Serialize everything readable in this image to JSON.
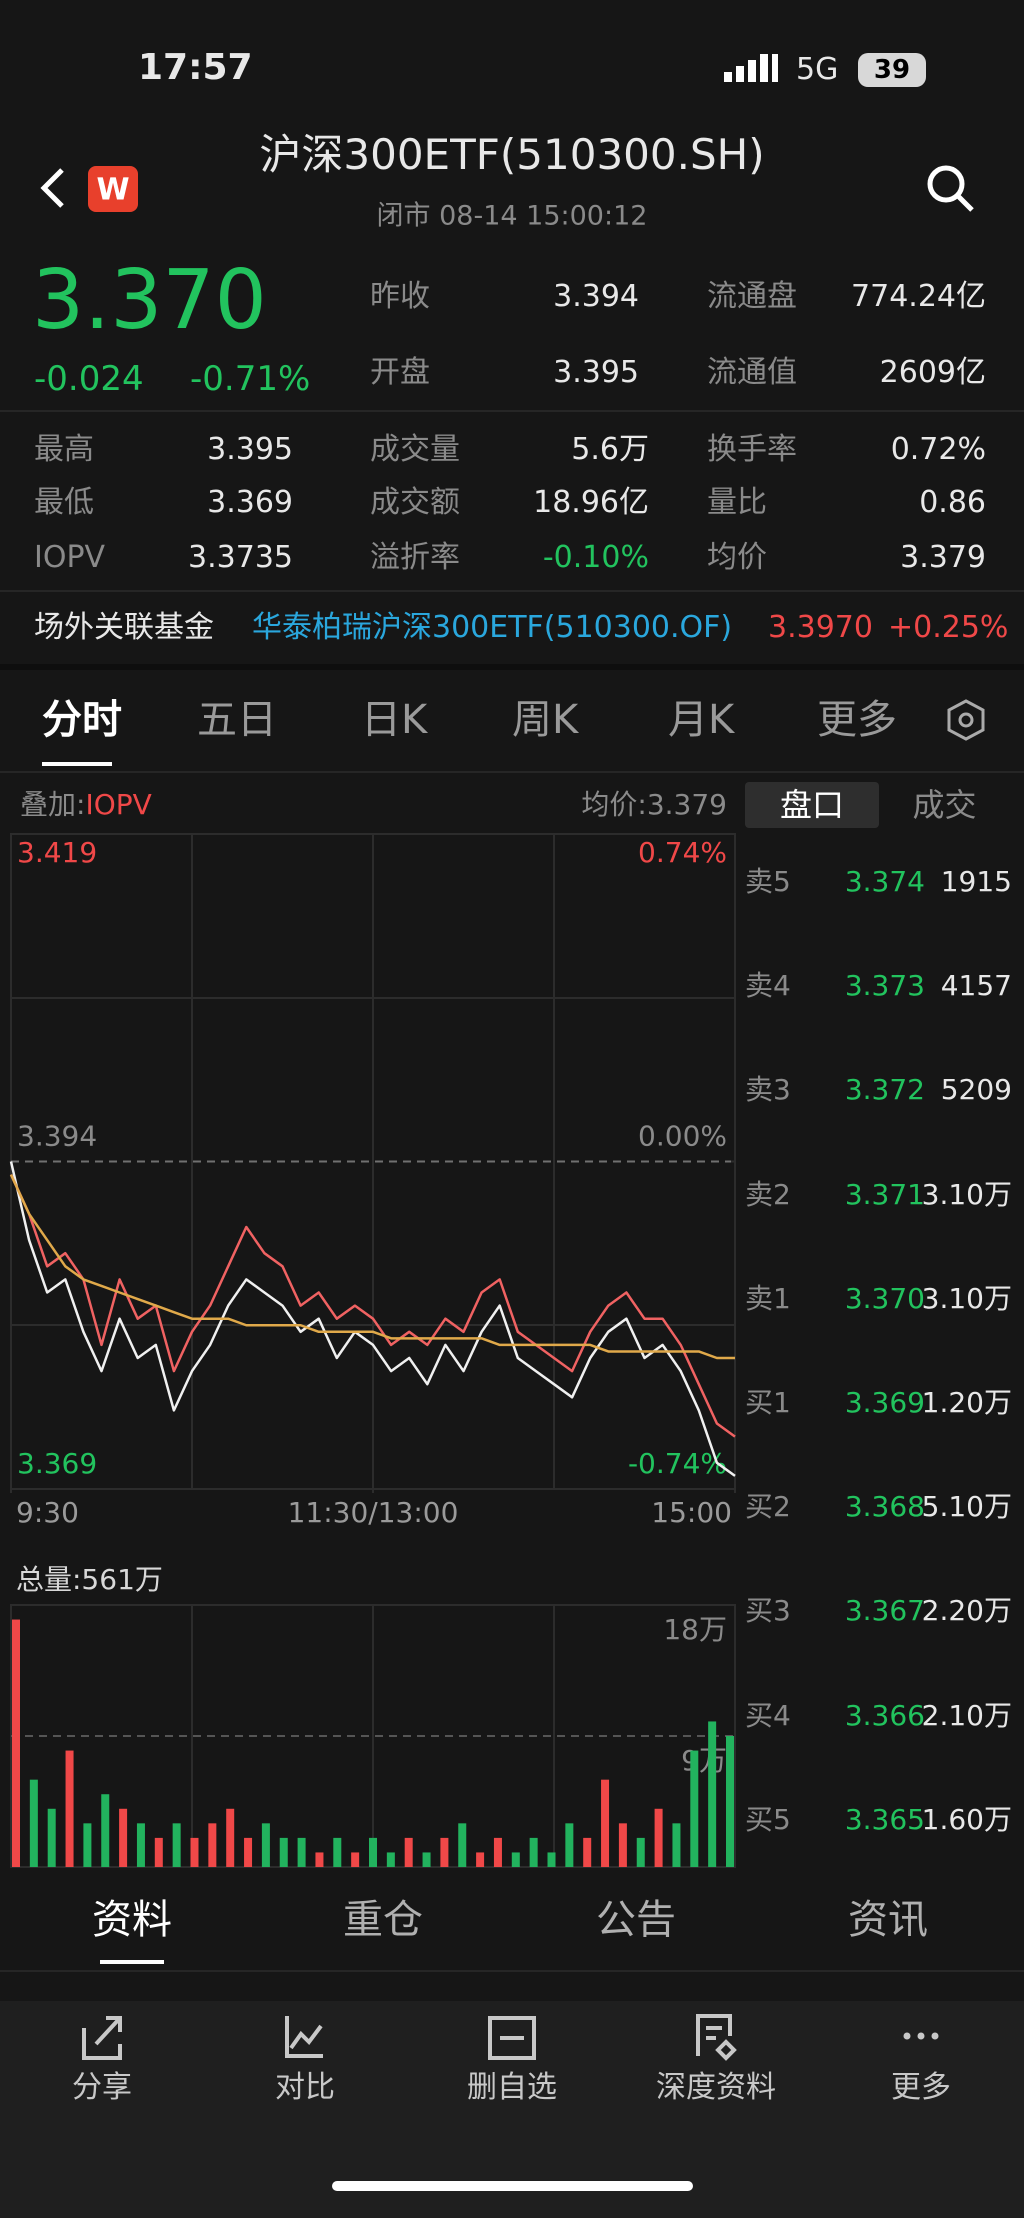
{
  "status": {
    "time": "17:57",
    "network": "5G",
    "battery": "39"
  },
  "header": {
    "title": "沪深300ETF(510300.SH)",
    "subtitle": "闭市 08-14 15:00:12"
  },
  "quote": {
    "price": "3.370",
    "change": "-0.024",
    "change_pct": "-0.71%",
    "top_stats": [
      [
        "昨收",
        "3.394",
        "流通盘",
        "774.24亿"
      ],
      [
        "开盘",
        "3.395",
        "流通值",
        "2609亿"
      ]
    ],
    "stats": [
      [
        "最高",
        "3.395",
        "成交量",
        "5.6万",
        "换手率",
        "0.72%"
      ],
      [
        "最低",
        "3.369",
        "成交额",
        "18.96亿",
        "量比",
        "0.86"
      ],
      [
        "IOPV",
        "3.3735",
        "溢折率",
        "-0.10%",
        "均价",
        "3.379"
      ]
    ]
  },
  "related": {
    "label": "场外关联基金",
    "fund": "华泰柏瑞沪深300ETF(510300.OF)",
    "price": "3.3970",
    "change": "+0.25%"
  },
  "tabs": [
    "分时",
    "五日",
    "日K",
    "周K",
    "月K",
    "更多"
  ],
  "chart_header": {
    "overlay_label": "叠加:",
    "overlay": "IOPV",
    "avg": "均价:3.379"
  },
  "book_tabs": [
    "盘口",
    "成交"
  ],
  "order_book": [
    [
      "卖5",
      "3.374",
      "1915"
    ],
    [
      "卖4",
      "3.373",
      "4157"
    ],
    [
      "卖3",
      "3.372",
      "5209"
    ],
    [
      "卖2",
      "3.371",
      "3.10万"
    ],
    [
      "卖1",
      "3.370",
      "3.10万"
    ],
    [
      "买1",
      "3.369",
      "1.20万"
    ],
    [
      "买2",
      "3.368",
      "5.10万"
    ],
    [
      "买3",
      "3.367",
      "2.20万"
    ],
    [
      "买4",
      "3.366",
      "2.10万"
    ],
    [
      "买5",
      "3.365",
      "1.60万"
    ]
  ],
  "chart_data": [
    {
      "type": "line",
      "x": [
        0,
        6,
        12,
        18,
        24,
        30,
        36,
        42,
        48,
        54,
        60,
        66,
        72,
        78,
        84,
        90,
        96,
        102,
        108,
        114,
        120,
        126,
        132,
        138,
        144,
        150,
        156,
        162,
        168,
        174,
        180,
        186,
        192,
        198,
        204,
        210,
        216,
        222,
        228,
        234,
        240
      ],
      "xlim": [
        0,
        240
      ],
      "xticks": [
        {
          "value": 0,
          "label": "9:30"
        },
        {
          "value": 120,
          "label": "11:30/13:00"
        },
        {
          "value": 240,
          "label": "15:00"
        }
      ],
      "ylim": [
        3.369,
        3.419
      ],
      "yticks": [
        3.419,
        3.394,
        3.369
      ],
      "y2lim": [
        -0.74,
        0.74
      ],
      "y2ticks": [
        {
          "value": 0.74,
          "label": "0.74%"
        },
        {
          "value": 0,
          "label": "0.00%"
        },
        {
          "value": -0.74,
          "label": "-0.74%"
        }
      ],
      "series": [
        {
          "color": "#f0f0f0",
          "values": [
            3.394,
            3.388,
            3.384,
            3.385,
            3.381,
            3.378,
            3.382,
            3.379,
            3.38,
            3.375,
            3.378,
            3.38,
            3.383,
            3.385,
            3.384,
            3.383,
            3.381,
            3.382,
            3.379,
            3.381,
            3.38,
            3.378,
            3.379,
            3.377,
            3.38,
            3.378,
            3.381,
            3.383,
            3.379,
            3.378,
            3.377,
            3.376,
            3.379,
            3.381,
            3.382,
            3.379,
            3.38,
            3.378,
            3.375,
            3.371,
            3.37
          ]
        },
        {
          "color": "#f06262",
          "values": [
            3.393,
            3.39,
            3.386,
            3.387,
            3.385,
            3.38,
            3.385,
            3.382,
            3.383,
            3.378,
            3.381,
            3.383,
            3.386,
            3.389,
            3.387,
            3.386,
            3.383,
            3.384,
            3.382,
            3.383,
            3.382,
            3.38,
            3.381,
            3.38,
            3.382,
            3.381,
            3.384,
            3.385,
            3.381,
            3.38,
            3.379,
            3.378,
            3.381,
            3.383,
            3.384,
            3.382,
            3.382,
            3.38,
            3.377,
            3.374,
            3.373
          ]
        },
        {
          "color": "#e0a94a",
          "values": [
            3.393,
            3.39,
            3.388,
            3.386,
            3.385,
            3.3845,
            3.384,
            3.3835,
            3.383,
            3.3825,
            3.382,
            3.382,
            3.382,
            3.3815,
            3.3815,
            3.3815,
            3.3815,
            3.381,
            3.381,
            3.381,
            3.381,
            3.3805,
            3.3805,
            3.3805,
            3.3805,
            3.3805,
            3.3805,
            3.38,
            3.38,
            3.38,
            3.38,
            3.38,
            3.38,
            3.3795,
            3.3795,
            3.3795,
            3.3795,
            3.3795,
            3.3795,
            3.379,
            3.379
          ]
        }
      ]
    },
    {
      "type": "bar",
      "title": "总量:561万",
      "x": [
        0,
        6,
        12,
        18,
        24,
        30,
        36,
        42,
        48,
        54,
        60,
        66,
        72,
        78,
        84,
        90,
        96,
        102,
        108,
        114,
        120,
        126,
        132,
        138,
        144,
        150,
        156,
        162,
        168,
        174,
        180,
        186,
        192,
        198,
        204,
        210,
        216,
        222,
        228,
        234,
        240
      ],
      "xlim": [
        0,
        240
      ],
      "ylim": [
        0,
        18
      ],
      "yticks": [
        {
          "value": 18,
          "label": "18万"
        },
        {
          "value": 9,
          "label": "9万"
        }
      ],
      "values": [
        17,
        6,
        4,
        8,
        3,
        5,
        4,
        3,
        2,
        3,
        2,
        3,
        4,
        2,
        3,
        2,
        2,
        1,
        2,
        1,
        2,
        1,
        2,
        1,
        2,
        3,
        1,
        2,
        1,
        2,
        1,
        3,
        2,
        6,
        3,
        2,
        4,
        3,
        8,
        10,
        9
      ],
      "colors": [
        "#f04848",
        "#22b35e",
        "#22b35e",
        "#f04848",
        "#22b35e",
        "#22b35e",
        "#f04848",
        "#22b35e",
        "#f04848",
        "#22b35e",
        "#f04848",
        "#f04848",
        "#f04848",
        "#f04848",
        "#22b35e",
        "#22b35e",
        "#22b35e",
        "#f04848",
        "#22b35e",
        "#f04848",
        "#22b35e",
        "#22b35e",
        "#f04848",
        "#22b35e",
        "#f04848",
        "#22b35e",
        "#f04848",
        "#f04848",
        "#22b35e",
        "#22b35e",
        "#22b35e",
        "#22b35e",
        "#f04848",
        "#f04848",
        "#f04848",
        "#22b35e",
        "#f04848",
        "#22b35e",
        "#22b35e",
        "#22b35e",
        "#22b35e"
      ]
    }
  ],
  "bottom_tabs": [
    "资料",
    "重仓",
    "公告",
    "资讯"
  ],
  "nav": [
    "分享",
    "对比",
    "删自选",
    "深度资料",
    "更多"
  ]
}
